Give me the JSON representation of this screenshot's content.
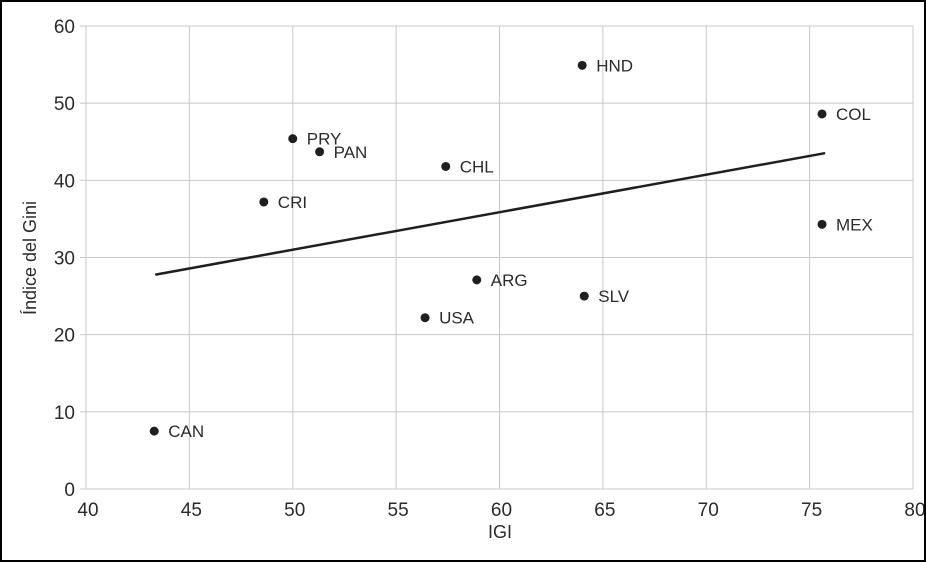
{
  "chart_data": {
    "type": "scatter",
    "title": "",
    "xlabel": "IGI",
    "ylabel": "Índice del Gini",
    "xlim": [
      40,
      80
    ],
    "ylim": [
      0,
      60
    ],
    "x_ticks": [
      40,
      45,
      50,
      55,
      60,
      65,
      70,
      75,
      80
    ],
    "y_ticks": [
      0,
      10,
      20,
      30,
      40,
      50,
      60
    ],
    "grid": true,
    "legend": false,
    "points": [
      {
        "label": "CAN",
        "x": 43.3,
        "y": 7.5
      },
      {
        "label": "CRI",
        "x": 48.6,
        "y": 37.2
      },
      {
        "label": "PRY",
        "x": 50.0,
        "y": 45.4
      },
      {
        "label": "PAN",
        "x": 51.3,
        "y": 43.7
      },
      {
        "label": "USA",
        "x": 56.4,
        "y": 22.2
      },
      {
        "label": "CHL",
        "x": 57.4,
        "y": 41.8
      },
      {
        "label": "ARG",
        "x": 58.9,
        "y": 27.1
      },
      {
        "label": "HND",
        "x": 64.0,
        "y": 54.9
      },
      {
        "label": "SLV",
        "x": 64.1,
        "y": 25.0
      },
      {
        "label": "COL",
        "x": 75.6,
        "y": 48.6
      },
      {
        "label": "MEX",
        "x": 75.6,
        "y": 34.3
      }
    ],
    "trend_line": {
      "x1": 43.4,
      "y1": 27.8,
      "x2": 75.7,
      "y2": 43.5
    },
    "colors": {
      "point": "#1f1f1f",
      "trend": "#1f1f1f",
      "grid": "#c8c8c8",
      "text": "#2b2b2b",
      "border": "#000000",
      "background": "#ffffff"
    }
  }
}
